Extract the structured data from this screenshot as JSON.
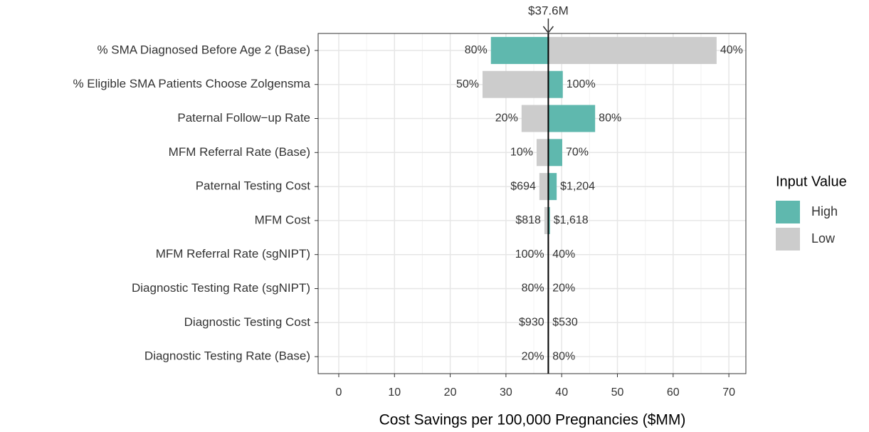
{
  "chart_data": {
    "type": "tornado",
    "categories": [
      "% SMA Diagnosed Before Age 2 (Base)",
      "% Eligible SMA Patients Choose Zolgensma",
      "Paternal Follow−up Rate",
      "MFM Referral Rate (Base)",
      "Paternal Testing Cost",
      "MFM Cost",
      "MFM Referral Rate (sgNIPT)",
      "Diagnostic Testing Rate (sgNIPT)",
      "Diagnostic Testing Cost",
      "Diagnostic Testing Rate (Base)"
    ],
    "base_value": 37.6,
    "base_label": "$37.6M",
    "series": [
      {
        "name": "High",
        "color": "#5fb8ae",
        "values": [
          27.3,
          40.2,
          46.0,
          40.1,
          39.1,
          37.9,
          37.5,
          37.5,
          37.5,
          37.7
        ],
        "value_labels": [
          "80%",
          "100%",
          "80%",
          "70%",
          "$1,204",
          "$1,618",
          "100%",
          "80%",
          "$930",
          "80%"
        ]
      },
      {
        "name": "Low",
        "color": "#cccccc",
        "values": [
          67.8,
          25.8,
          32.8,
          35.5,
          36.0,
          36.9,
          37.7,
          37.7,
          37.7,
          37.5
        ],
        "value_labels": [
          "40%",
          "50%",
          "20%",
          "10%",
          "$694",
          "$818",
          "40%",
          "20%",
          "$530",
          "20%"
        ]
      }
    ],
    "xlabel": "Cost Savings per 100,000 Pregnancies ($MM)",
    "legend_title": "Input Value",
    "legend": "right",
    "xlim": [
      -3.7,
      73.05
    ],
    "xticks": [
      0,
      10,
      20,
      30,
      40,
      50,
      60,
      70
    ],
    "minor_xticks": [
      5,
      15,
      25,
      35,
      45,
      55,
      65
    ],
    "grid": true
  }
}
